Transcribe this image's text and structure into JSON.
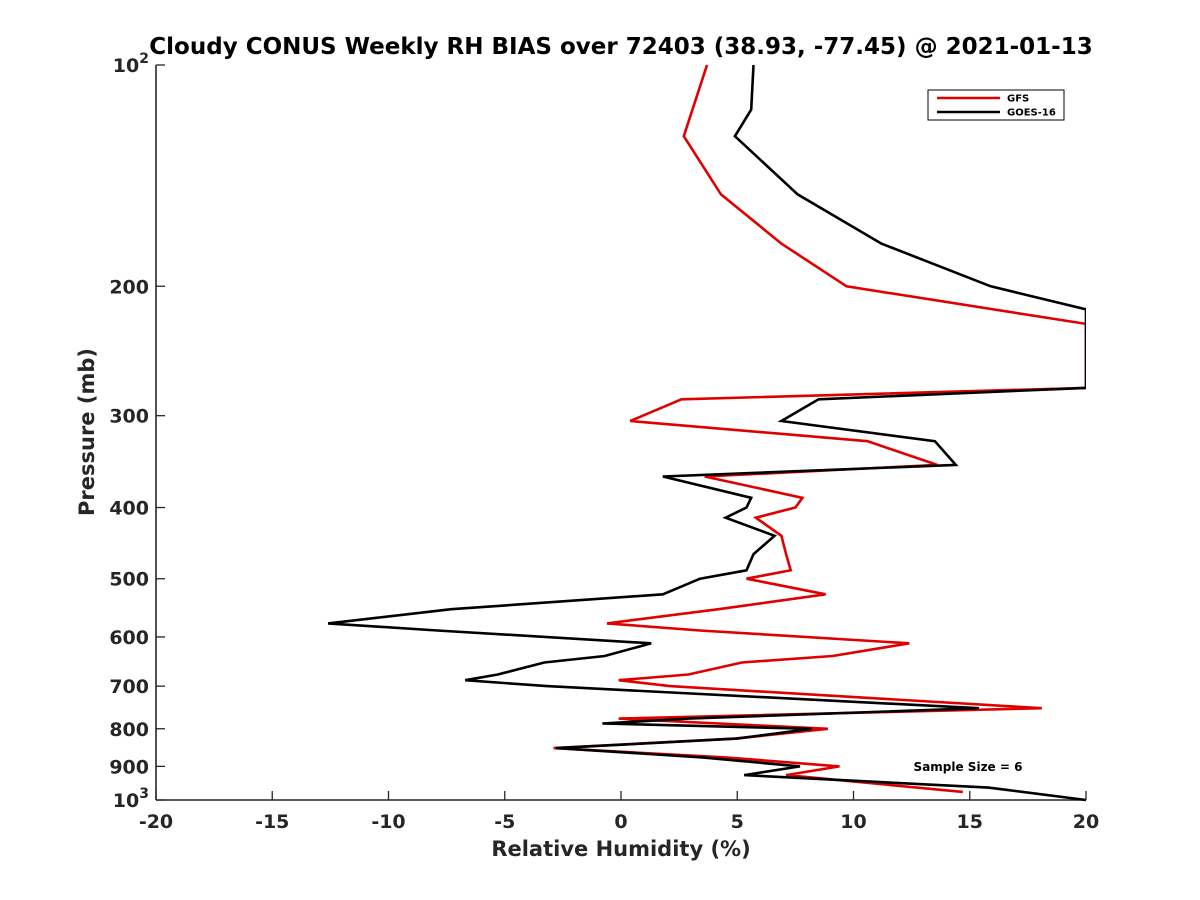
{
  "colors": {
    "gfs": "#e00000",
    "goes16": "#000000",
    "axis": "#262626"
  },
  "chart_data": {
    "type": "line",
    "title": "Cloudy CONUS Weekly RH BIAS over 72403 (38.93, -77.45) @ 2021-01-13",
    "xlabel": "Relative Humidity (%)",
    "ylabel": "Pressure (mb)",
    "xlim": [
      -20,
      20
    ],
    "ylim": [
      100,
      1000
    ],
    "yscale": "log",
    "yreversed": true,
    "xticks": [
      {
        "value": -20,
        "label": "-20"
      },
      {
        "value": -15,
        "label": "-15"
      },
      {
        "value": -10,
        "label": "-10"
      },
      {
        "value": -5,
        "label": "-5"
      },
      {
        "value": 0,
        "label": "0"
      },
      {
        "value": 5,
        "label": "5"
      },
      {
        "value": 10,
        "label": "10"
      },
      {
        "value": 15,
        "label": "15"
      },
      {
        "value": 20,
        "label": "20"
      }
    ],
    "yticks": [
      {
        "value": 100,
        "label": "10",
        "exp": "2"
      },
      {
        "value": 200,
        "label": "200"
      },
      {
        "value": 300,
        "label": "300"
      },
      {
        "value": 400,
        "label": "400"
      },
      {
        "value": 500,
        "label": "500"
      },
      {
        "value": 600,
        "label": "600"
      },
      {
        "value": 700,
        "label": "700"
      },
      {
        "value": 800,
        "label": "800"
      },
      {
        "value": 900,
        "label": "900"
      },
      {
        "value": 1000,
        "label": "10",
        "exp": "3"
      }
    ],
    "grid": false,
    "legend_position": "top-right",
    "annotation": "Sample Size = 6",
    "series": [
      {
        "name": "GFS",
        "color": "#e00000",
        "points": [
          [
            3.7,
            100
          ],
          [
            2.7,
            125
          ],
          [
            4.3,
            150
          ],
          [
            6.9,
            175
          ],
          [
            9.7,
            200
          ],
          [
            20.0,
            225
          ],
          [
            20.0,
            275
          ],
          [
            2.6,
            285
          ],
          [
            0.4,
            305
          ],
          [
            10.6,
            325
          ],
          [
            13.6,
            350
          ],
          [
            3.6,
            363
          ],
          [
            7.8,
            388
          ],
          [
            7.5,
            400
          ],
          [
            5.8,
            413
          ],
          [
            6.9,
            437
          ],
          [
            7.1,
            463
          ],
          [
            7.3,
            487
          ],
          [
            5.4,
            500
          ],
          [
            8.8,
            525
          ],
          [
            4.2,
            550
          ],
          [
            -0.6,
            575
          ],
          [
            3.4,
            588
          ],
          [
            12.4,
            612
          ],
          [
            9.1,
            637
          ],
          [
            5.2,
            650
          ],
          [
            2.9,
            675
          ],
          [
            -0.1,
            687
          ],
          [
            2.1,
            700
          ],
          [
            18.1,
            750
          ],
          [
            -0.1,
            775
          ],
          [
            8.9,
            800
          ],
          [
            4.9,
            825
          ],
          [
            -2.9,
            850
          ],
          [
            4.5,
            875
          ],
          [
            9.4,
            900
          ],
          [
            7.1,
            925
          ],
          [
            14.7,
            975
          ]
        ]
      },
      {
        "name": "GOES-16",
        "color": "#000000",
        "points": [
          [
            5.7,
            100
          ],
          [
            5.6,
            115
          ],
          [
            4.9,
            125
          ],
          [
            7.6,
            150
          ],
          [
            11.2,
            175
          ],
          [
            15.9,
            200
          ],
          [
            20.0,
            215
          ],
          [
            20.0,
            275
          ],
          [
            8.5,
            285
          ],
          [
            6.9,
            305
          ],
          [
            13.5,
            325
          ],
          [
            14.4,
            350
          ],
          [
            1.8,
            363
          ],
          [
            5.6,
            388
          ],
          [
            5.4,
            400
          ],
          [
            4.5,
            413
          ],
          [
            6.6,
            437
          ],
          [
            5.7,
            463
          ],
          [
            5.4,
            487
          ],
          [
            3.4,
            500
          ],
          [
            1.8,
            525
          ],
          [
            -7.3,
            550
          ],
          [
            -12.6,
            575
          ],
          [
            -7.9,
            588
          ],
          [
            1.3,
            612
          ],
          [
            -0.7,
            637
          ],
          [
            -3.3,
            650
          ],
          [
            -5.3,
            675
          ],
          [
            -6.7,
            687
          ],
          [
            -3.2,
            700
          ],
          [
            15.4,
            750
          ],
          [
            2.9,
            775
          ],
          [
            -0.8,
            787
          ],
          [
            8.2,
            800
          ],
          [
            5.0,
            825
          ],
          [
            -2.8,
            850
          ],
          [
            3.5,
            875
          ],
          [
            7.7,
            900
          ],
          [
            5.3,
            925
          ],
          [
            15.8,
            962
          ],
          [
            20.0,
            1000
          ]
        ]
      }
    ]
  }
}
